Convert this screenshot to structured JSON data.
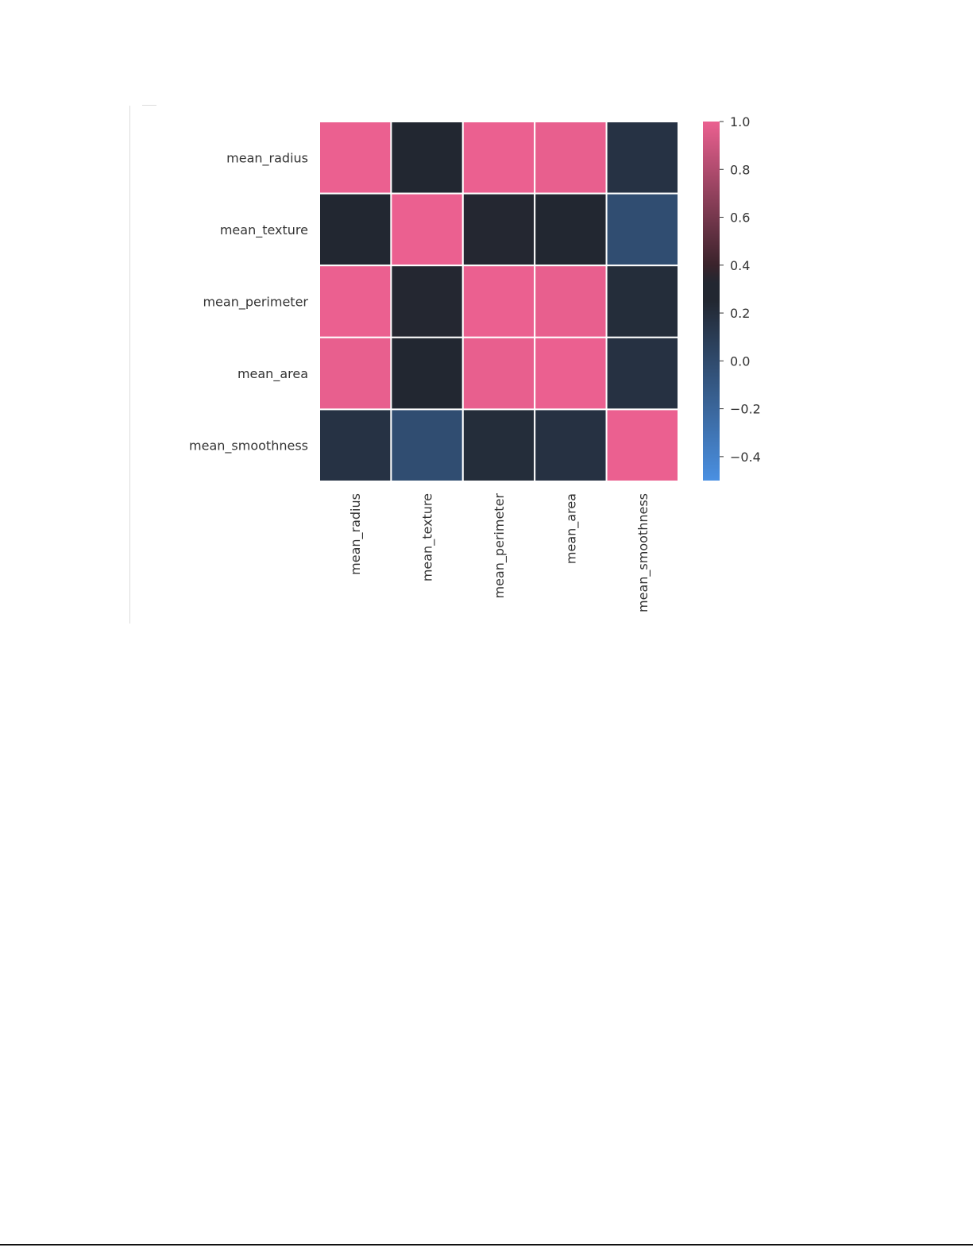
{
  "chart_data": {
    "type": "heatmap",
    "row_labels": [
      "mean_radius",
      "mean_texture",
      "mean_perimeter",
      "mean_area",
      "mean_smoothness"
    ],
    "col_labels": [
      "mean_radius",
      "mean_texture",
      "mean_perimeter",
      "mean_area",
      "mean_smoothness"
    ],
    "values": [
      [
        1.0,
        0.32,
        1.0,
        0.99,
        0.17
      ],
      [
        0.32,
        1.0,
        0.33,
        0.32,
        -0.02
      ],
      [
        1.0,
        0.33,
        1.0,
        0.99,
        0.21
      ],
      [
        0.99,
        0.32,
        0.99,
        1.0,
        0.18
      ],
      [
        0.17,
        -0.02,
        0.21,
        0.18,
        1.0
      ]
    ],
    "colorbar": {
      "range": [
        -0.5,
        1.0
      ],
      "ticks": [
        1.0,
        0.8,
        0.6,
        0.4,
        0.2,
        0.0,
        -0.2,
        -0.4
      ],
      "tick_labels": [
        "1.0",
        "0.8",
        "0.6",
        "0.4",
        "0.2",
        "0.0",
        "−0.2",
        "−0.4"
      ],
      "colors": {
        "low": "#4a90e2",
        "mid": "#222731",
        "dark_warm": "#3a232b",
        "high": "#eb6090"
      }
    },
    "grid_line_color": "#ffffff"
  }
}
